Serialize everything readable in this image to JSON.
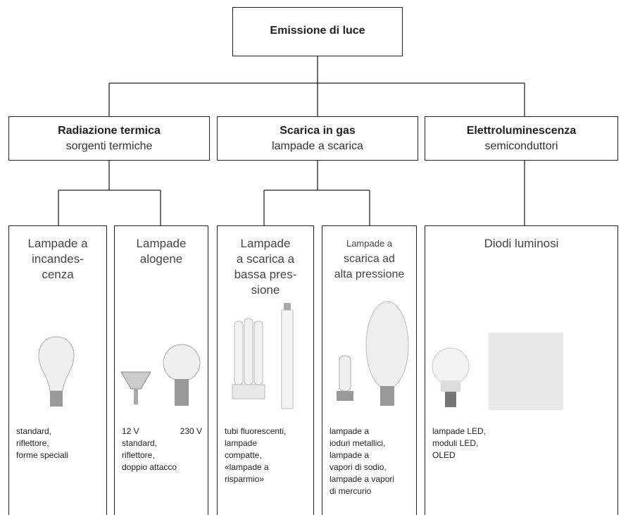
{
  "root": {
    "label": "Emissione di luce"
  },
  "categories": [
    {
      "title": "Radiazione termica",
      "subtitle": "sorgenti termiche"
    },
    {
      "title": "Scarica in gas",
      "subtitle": "lampade a scarica"
    },
    {
      "title": "Elettroluminescenza",
      "subtitle": "semiconduttori"
    }
  ],
  "leaves": [
    {
      "title": [
        "Lampade a",
        "incandes-",
        "cenza"
      ],
      "description": [
        "standard,",
        "riflettore,",
        "forme speciali"
      ]
    },
    {
      "title": [
        "Lampade",
        "alogene"
      ],
      "labels": [
        "12 V",
        "230 V"
      ],
      "description": [
        "standard,",
        "riflettore,",
        "doppio attacco"
      ]
    },
    {
      "title": [
        "Lampade",
        "a scarica a",
        "bassa pres-",
        "sione"
      ],
      "description": [
        "tubi fluorescenti,",
        "lampade",
        "compatte,",
        "«lampade a",
        "risparmio»"
      ]
    },
    {
      "title": [
        "Lampade a",
        "scarica ad",
        "alta pressione"
      ],
      "description": [
        "lampade a",
        "ioduri metallici,",
        "lampade a",
        "vapori di sodio,",
        "lampade a vapori",
        "di mercurio"
      ]
    },
    {
      "title": [
        "Diodi luminosi"
      ],
      "description": [
        "lampade LED,",
        "moduli LED,",
        "OLED"
      ]
    }
  ]
}
